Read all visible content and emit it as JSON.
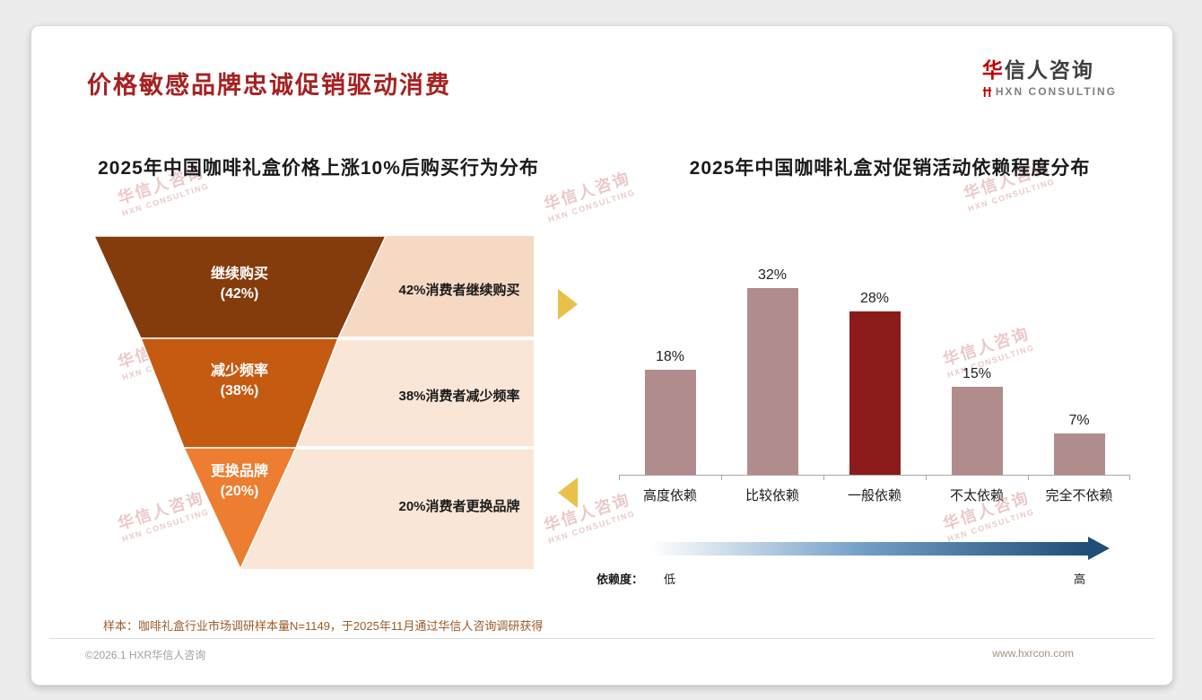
{
  "theme": {
    "title_color": "#A62121",
    "logo_red": "#C00000",
    "logo_gray": "#7F7F7F",
    "arrow_gold": "#E9C04A",
    "watermark_color": "#DC9C9C",
    "footnote_color": "#9C5B28",
    "axis_color": "#A6A6A6"
  },
  "page": {
    "title": "价格敏感品牌忠诚促销驱动消费",
    "footnote": "样本：咖啡礼盒行业市场调研样本量N=1149，于2025年11月通过华信人咨询调研获得",
    "footer_left": "©2026.1 HXR华信人咨询",
    "footer_right": "www.hxrcon.com"
  },
  "logo": {
    "name_red": "华",
    "name_rest": "信人咨询",
    "subtitle": "HXN CONSULTING"
  },
  "watermark": {
    "line1": "华信人咨询",
    "line2": "HXN CONSULTING"
  },
  "chart_data": [
    {
      "type": "funnel",
      "title": "2025年中国咖啡礼盒价格上涨10%后购买行为分布",
      "categories": [
        "继续购买",
        "减少频率",
        "更换品牌"
      ],
      "values": [
        42,
        38,
        20
      ],
      "value_labels": [
        "(42%)",
        "(38%)",
        "(20%)"
      ],
      "annotations": [
        "42%消费者继续购买",
        "38%消费者减少频率",
        "20%消费者更换品牌"
      ],
      "colors": [
        "#843C0C",
        "#C55A11",
        "#ED7D31"
      ],
      "panel_colors": [
        "#F5D9C3",
        "#FAE6D6",
        "#FAE6D6"
      ]
    },
    {
      "type": "bar",
      "title": "2025年中国咖啡礼盒对促销活动依赖程度分布",
      "categories": [
        "高度依赖",
        "比较依赖",
        "一般依赖",
        "不太依赖",
        "完全不依赖"
      ],
      "values": [
        18,
        32,
        28,
        15,
        7
      ],
      "value_labels": [
        "18%",
        "32%",
        "28%",
        "15%",
        "7%"
      ],
      "bar_colors": [
        "#B18C8C",
        "#B18C8C",
        "#8C1A1A",
        "#B18C8C",
        "#B18C8C"
      ],
      "highlight_index": 2,
      "ylim": [
        0,
        35
      ],
      "grid": false,
      "axis_note": {
        "label": "依赖度：",
        "low": "低",
        "high": "高"
      },
      "gradient": [
        "#FFFFFF",
        "#6E9CC4",
        "#1F4E79"
      ]
    }
  ]
}
